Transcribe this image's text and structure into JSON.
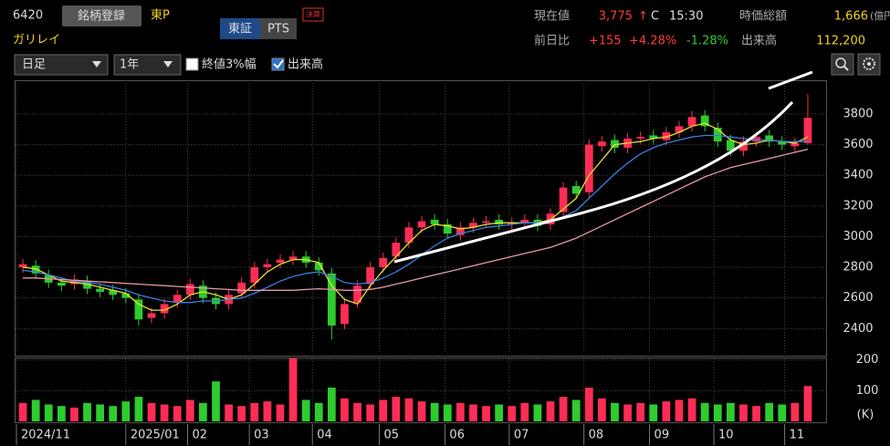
{
  "header": {
    "code": "6420",
    "register_button": "銘柄登録",
    "market": "東P",
    "name": "ガリレイ",
    "tab_tse": "東証",
    "tab_pts": "PTS",
    "badge": "決算",
    "price_label": "現在値",
    "price": "3,775",
    "price_arrow": "↑",
    "price_flag": "C",
    "time": "15:30",
    "cap_label": "時価総額",
    "cap": "1,666",
    "cap_unit": "(億円)",
    "change_label": "前日比",
    "change": "+155",
    "change_pct": "+4.28%",
    "change_pct2": "-1.28%",
    "volume_label": "出来高",
    "volume": "112,200",
    "period_select": "日足",
    "range_select": "1年",
    "check_3pct": "終値3%幅",
    "check_volume": "出来高"
  },
  "chart_data": {
    "type": "candlestick",
    "open": [
      2800,
      2810,
      2750,
      2700,
      2690,
      2710,
      2660,
      2650,
      2630,
      2590,
      2470,
      2500,
      2570,
      2620,
      2680,
      2600,
      2560,
      2630,
      2700,
      2800,
      2830,
      2850,
      2870,
      2830,
      2760,
      2430,
      2570,
      2690,
      2800,
      2870,
      2960,
      3060,
      3110,
      3080,
      3010,
      3060,
      3090,
      3110,
      3080,
      3090,
      3110,
      3080,
      3160,
      3330,
      3290,
      3590,
      3630,
      3580,
      3640,
      3660,
      3630,
      3680,
      3720,
      3790,
      3710,
      3630,
      3560,
      3620,
      3660,
      3620,
      3590,
      3610
    ],
    "high": [
      2855,
      2845,
      2785,
      2735,
      2755,
      2745,
      2695,
      2685,
      2665,
      2625,
      2535,
      2595,
      2655,
      2725,
      2715,
      2635,
      2655,
      2735,
      2835,
      2855,
      2885,
      2905,
      2905,
      2865,
      2795,
      2595,
      2715,
      2835,
      2895,
      2995,
      3095,
      3135,
      3145,
      3115,
      3095,
      3125,
      3135,
      3145,
      3125,
      3145,
      3145,
      3185,
      3355,
      3365,
      3635,
      3655,
      3665,
      3675,
      3685,
      3695,
      3715,
      3755,
      3820,
      3825,
      3745,
      3665,
      3655,
      3685,
      3695,
      3655,
      3645,
      3930
    ],
    "low": [
      2765,
      2725,
      2665,
      2645,
      2655,
      2625,
      2605,
      2585,
      2565,
      2420,
      2435,
      2465,
      2535,
      2585,
      2565,
      2525,
      2525,
      2595,
      2665,
      2765,
      2795,
      2815,
      2795,
      2745,
      2330,
      2395,
      2535,
      2655,
      2765,
      2835,
      2925,
      3025,
      3045,
      2985,
      2975,
      3025,
      3055,
      3045,
      3045,
      3055,
      3035,
      3045,
      3125,
      3245,
      3255,
      3555,
      3545,
      3545,
      3605,
      3605,
      3595,
      3645,
      3685,
      3685,
      3585,
      3525,
      3525,
      3585,
      3585,
      3565,
      3555,
      3600
    ],
    "close": [
      2820,
      2760,
      2700,
      2680,
      2720,
      2660,
      2640,
      2620,
      2600,
      2460,
      2500,
      2560,
      2620,
      2690,
      2600,
      2560,
      2620,
      2700,
      2800,
      2820,
      2850,
      2870,
      2830,
      2780,
      2420,
      2560,
      2680,
      2800,
      2860,
      2960,
      3060,
      3100,
      3080,
      3020,
      3060,
      3090,
      3100,
      3080,
      3090,
      3110,
      3070,
      3150,
      3320,
      3280,
      3600,
      3620,
      3580,
      3640,
      3650,
      3640,
      3680,
      3720,
      3780,
      3720,
      3620,
      3560,
      3620,
      3650,
      3620,
      3600,
      3610,
      3775
    ],
    "up_color": "#ff2d55",
    "down_color": "#2ecc2e",
    "series": [
      {
        "color": "#e6e030",
        "values": [
          2800,
          2790,
          2750,
          2710,
          2700,
          2690,
          2670,
          2650,
          2630,
          2560,
          2520,
          2520,
          2560,
          2620,
          2640,
          2620,
          2590,
          2620,
          2690,
          2770,
          2820,
          2850,
          2850,
          2830,
          2680,
          2590,
          2560,
          2680,
          2780,
          2870,
          2960,
          3040,
          3080,
          3070,
          3050,
          3060,
          3080,
          3090,
          3090,
          3090,
          3090,
          3110,
          3180,
          3250,
          3400,
          3500,
          3600,
          3610,
          3620,
          3640,
          3650,
          3680,
          3720,
          3740,
          3700,
          3630,
          3600,
          3610,
          3630,
          3620,
          3610,
          3650
        ]
      },
      {
        "color": "#3a7ee0",
        "values": [
          2780,
          2770,
          2750,
          2730,
          2710,
          2700,
          2690,
          2670,
          2650,
          2620,
          2600,
          2580,
          2570,
          2570,
          2580,
          2580,
          2590,
          2600,
          2630,
          2670,
          2710,
          2740,
          2760,
          2770,
          2740,
          2700,
          2690,
          2700,
          2730,
          2770,
          2820,
          2880,
          2940,
          2990,
          3020,
          3040,
          3060,
          3070,
          3080,
          3090,
          3090,
          3100,
          3130,
          3170,
          3250,
          3330,
          3410,
          3480,
          3540,
          3580,
          3610,
          3630,
          3650,
          3660,
          3660,
          3650,
          3640,
          3630,
          3630,
          3620,
          3620,
          3620
        ]
      },
      {
        "color": "#e89aa6",
        "values": [
          2730,
          2730,
          2725,
          2720,
          2715,
          2710,
          2705,
          2700,
          2695,
          2690,
          2685,
          2680,
          2675,
          2670,
          2665,
          2660,
          2655,
          2650,
          2650,
          2650,
          2650,
          2650,
          2655,
          2660,
          2655,
          2650,
          2650,
          2655,
          2670,
          2690,
          2710,
          2730,
          2750,
          2770,
          2790,
          2810,
          2830,
          2850,
          2870,
          2890,
          2910,
          2930,
          2960,
          2990,
          3030,
          3070,
          3110,
          3150,
          3190,
          3230,
          3270,
          3310,
          3350,
          3390,
          3420,
          3450,
          3470,
          3490,
          3510,
          3530,
          3550,
          3570
        ]
      }
    ],
    "ylim": [
      2235,
      4020
    ],
    "yticks": [
      2400,
      2600,
      2800,
      3000,
      3200,
      3400,
      3600,
      3800
    ],
    "grid": true,
    "xlim": [
      0,
      62
    ],
    "xticks": [
      {
        "value": 0,
        "label": "2024/11"
      },
      {
        "value": 8.5,
        "label": "2025/01"
      },
      {
        "value": 13.3,
        "label": "02"
      },
      {
        "value": 18.1,
        "label": "03"
      },
      {
        "value": 23.0,
        "label": "04"
      },
      {
        "value": 28.2,
        "label": "05"
      },
      {
        "value": 33.3,
        "label": "06"
      },
      {
        "value": 38.3,
        "label": "07"
      },
      {
        "value": 44.1,
        "label": "08"
      },
      {
        "value": 49.2,
        "label": "09"
      },
      {
        "value": 54.2,
        "label": "10"
      },
      {
        "value": 59.7,
        "label": "11"
      }
    ],
    "volume": {
      "values": [
        60,
        70,
        55,
        50,
        45,
        60,
        55,
        50,
        65,
        80,
        60,
        55,
        50,
        70,
        60,
        130,
        55,
        50,
        60,
        65,
        55,
        205,
        70,
        60,
        110,
        75,
        60,
        55,
        70,
        80,
        75,
        65,
        60,
        55,
        60,
        55,
        50,
        55,
        50,
        60,
        55,
        65,
        80,
        70,
        110,
        75,
        60,
        55,
        60,
        55,
        65,
        70,
        75,
        60,
        55,
        60,
        55,
        50,
        60,
        55,
        60,
        115
      ],
      "ylim": [
        0,
        205
      ],
      "yticks": [
        100,
        200
      ],
      "unit": "(K)"
    }
  }
}
